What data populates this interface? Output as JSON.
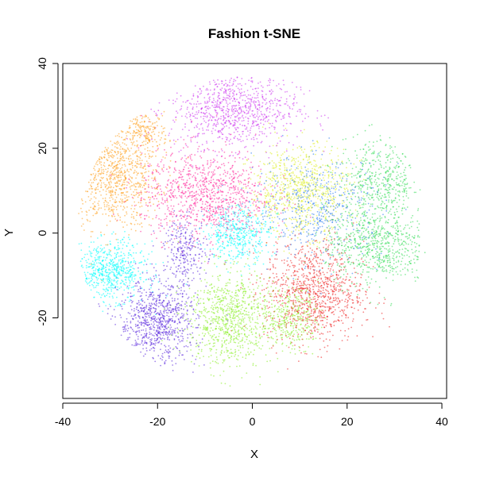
{
  "chart_data": {
    "type": "scatter",
    "title": "Fashion t-SNE",
    "xlabel": "X",
    "ylabel": "Y",
    "xlim": [
      -40,
      41
    ],
    "ylim": [
      -39,
      40
    ],
    "xticks": [
      "-40",
      "-20",
      "0",
      "20",
      "40"
    ],
    "yticks": [
      "-20",
      "0",
      "20",
      "40"
    ],
    "xtick_values": [
      -40,
      -20,
      0,
      20,
      40
    ],
    "ytick_values": [
      -20,
      0,
      20,
      40
    ],
    "grid": false,
    "legend": "none",
    "series": [
      {
        "color": "#ff9f1a",
        "clusters": [
          {
            "cx": -29,
            "cy": 13,
            "sx": 6.5,
            "sy": 8,
            "n": 900
          },
          {
            "cx": -23,
            "cy": 24,
            "sx": 3.5,
            "sy": 3,
            "n": 200
          }
        ]
      },
      {
        "color": "#cc33ee",
        "clusters": [
          {
            "cx": -4,
            "cy": 29,
            "sx": 9,
            "sy": 6,
            "n": 900
          }
        ]
      },
      {
        "color": "#ff2299",
        "clusters": [
          {
            "cx": -10,
            "cy": 9,
            "sx": 9,
            "sy": 7,
            "n": 1000
          }
        ]
      },
      {
        "color": "#00ffff",
        "clusters": [
          {
            "cx": -30,
            "cy": -9,
            "sx": 5,
            "sy": 4.5,
            "n": 650
          },
          {
            "cx": -3,
            "cy": 0,
            "sx": 4.5,
            "sy": 4.5,
            "n": 450
          }
        ]
      },
      {
        "color": "#5522dd",
        "clusters": [
          {
            "cx": -20,
            "cy": -21,
            "sx": 5.5,
            "sy": 6.5,
            "n": 850
          },
          {
            "cx": -14,
            "cy": -4,
            "sx": 3,
            "sy": 5,
            "n": 250
          }
        ]
      },
      {
        "color": "#88ee22",
        "clusters": [
          {
            "cx": -5,
            "cy": -20,
            "sx": 6,
            "sy": 7.5,
            "n": 850
          },
          {
            "cx": 8,
            "cy": -20,
            "sx": 4,
            "sy": 5,
            "n": 350
          }
        ]
      },
      {
        "color": "#ee2222",
        "clusters": [
          {
            "cx": 13,
            "cy": -14,
            "sx": 7,
            "sy": 8,
            "n": 1000
          }
        ]
      },
      {
        "color": "#33dd55",
        "clusters": [
          {
            "cx": 26,
            "cy": -3,
            "sx": 7,
            "sy": 6,
            "n": 700
          },
          {
            "cx": 27,
            "cy": 12,
            "sx": 6,
            "sy": 7,
            "n": 500
          }
        ]
      },
      {
        "color": "#ddee22",
        "clusters": [
          {
            "cx": 10,
            "cy": 10,
            "sx": 7,
            "sy": 7,
            "n": 800
          }
        ]
      },
      {
        "color": "#2277ee",
        "clusters": [
          {
            "cx": 14,
            "cy": 6,
            "sx": 9,
            "sy": 8,
            "n": 500
          }
        ]
      }
    ]
  }
}
